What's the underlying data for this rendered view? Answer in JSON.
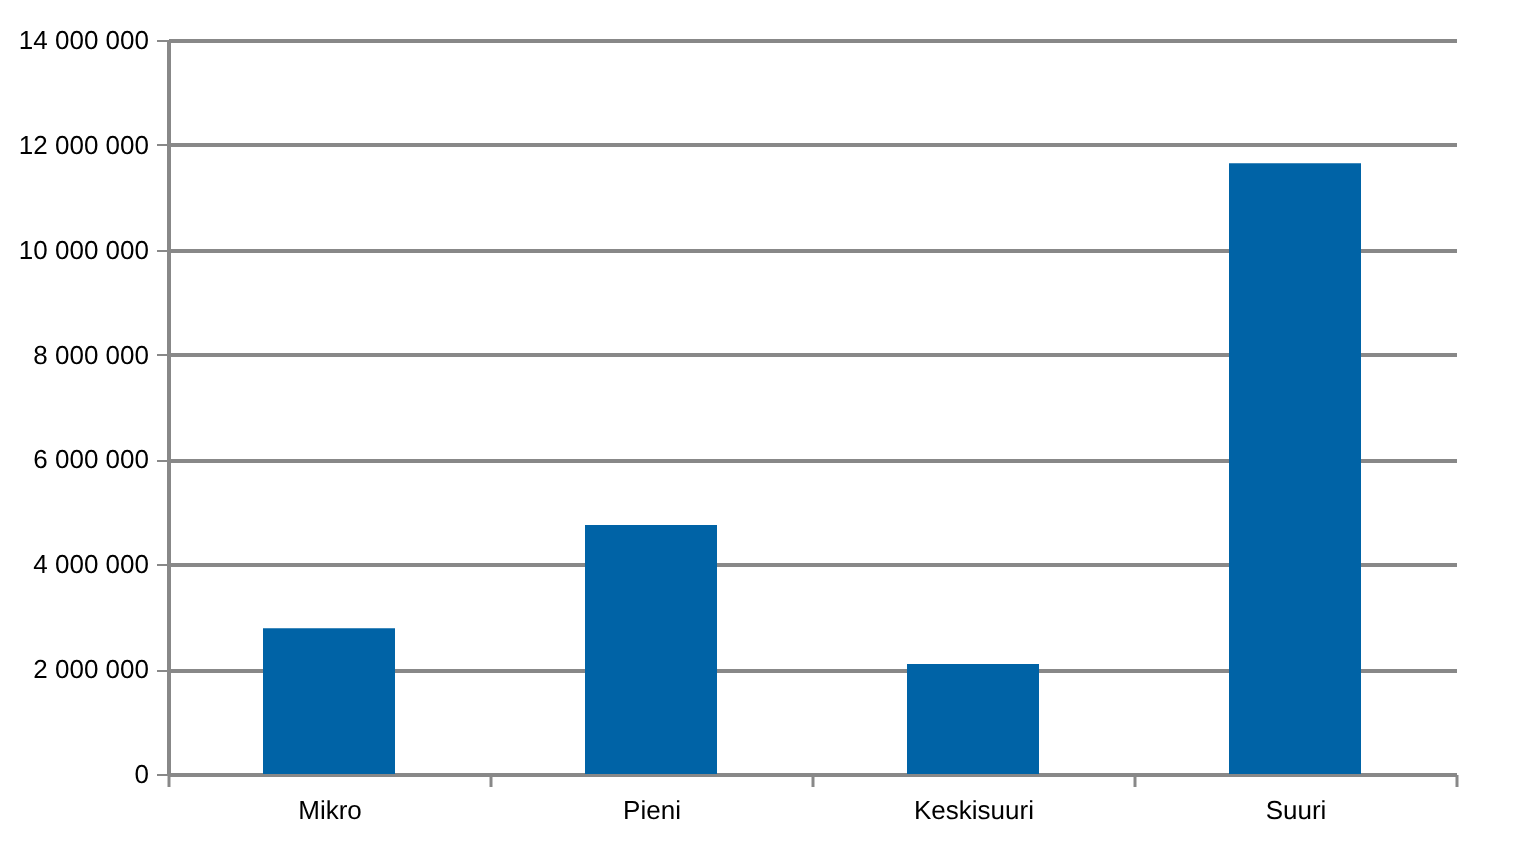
{
  "chart_data": {
    "type": "bar",
    "categories": [
      "Mikro",
      "Pieni",
      "Keskisuuri",
      "Suuri"
    ],
    "values": [
      2780000,
      4750000,
      2100000,
      11650000
    ],
    "color": "#0063a6",
    "ylim": [
      0,
      14000000
    ],
    "yticks": [
      {
        "value": 0,
        "label": "0"
      },
      {
        "value": 2000000,
        "label": "2 000 000"
      },
      {
        "value": 4000000,
        "label": "4 000 000"
      },
      {
        "value": 6000000,
        "label": "6 000 000"
      },
      {
        "value": 8000000,
        "label": "8 000 000"
      },
      {
        "value": 10000000,
        "label": "10 000 000"
      },
      {
        "value": 12000000,
        "label": "12 000 000"
      },
      {
        "value": 14000000,
        "label": "14 000 000"
      }
    ],
    "grid": "y"
  }
}
